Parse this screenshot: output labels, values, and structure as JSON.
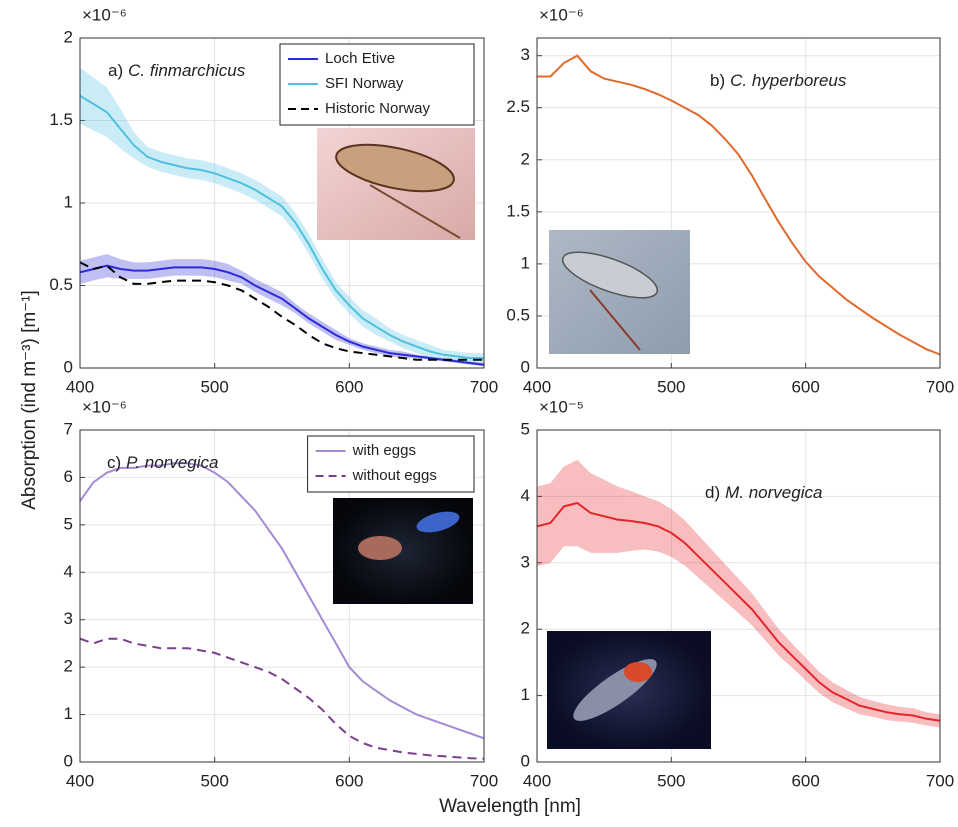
{
  "ylabel": "Absorption (ind m⁻³) [m⁻¹]",
  "xlabel": "Wavelength [nm]",
  "chart_data": [
    {
      "type": "line",
      "panel_label": "a)",
      "species": "C. finmarchicus",
      "y_multiplier": "×10⁻⁶",
      "x": [
        400,
        410,
        420,
        430,
        440,
        450,
        460,
        470,
        480,
        490,
        500,
        510,
        520,
        530,
        540,
        550,
        560,
        570,
        580,
        590,
        600,
        610,
        620,
        630,
        640,
        650,
        660,
        670,
        680,
        690,
        700
      ],
      "xlim": [
        400,
        700
      ],
      "xticks": [
        400,
        500,
        600,
        700
      ],
      "ylim": [
        0,
        2
      ],
      "yticks": [
        0,
        0.5,
        1,
        1.5,
        2
      ],
      "grid": true,
      "legend": "upper right",
      "series": [
        {
          "name": "Loch Etive",
          "color": "#2b2bd9",
          "dash": false,
          "values": [
            0.58,
            0.6,
            0.62,
            0.6,
            0.59,
            0.59,
            0.6,
            0.61,
            0.61,
            0.61,
            0.6,
            0.58,
            0.55,
            0.5,
            0.46,
            0.42,
            0.36,
            0.3,
            0.25,
            0.2,
            0.16,
            0.13,
            0.11,
            0.09,
            0.08,
            0.07,
            0.06,
            0.05,
            0.04,
            0.03,
            0.02
          ],
          "error": [
            0.07,
            0.07,
            0.07,
            0.06,
            0.05,
            0.05,
            0.05,
            0.05,
            0.05,
            0.05,
            0.05,
            0.05,
            0.04,
            0.04,
            0.04,
            0.04,
            0.03,
            0.03,
            0.03,
            0.03,
            0.02,
            0.02,
            0.02,
            0.02,
            0.02,
            0.01,
            0.01,
            0.01,
            0.01,
            0.01,
            0.01
          ]
        },
        {
          "name": "SFI Norway",
          "color": "#4fc0e0",
          "dash": false,
          "values": [
            1.65,
            1.6,
            1.55,
            1.45,
            1.35,
            1.28,
            1.25,
            1.23,
            1.21,
            1.2,
            1.18,
            1.15,
            1.12,
            1.08,
            1.03,
            0.98,
            0.88,
            0.75,
            0.6,
            0.47,
            0.38,
            0.3,
            0.25,
            0.2,
            0.16,
            0.13,
            0.1,
            0.08,
            0.07,
            0.06,
            0.06
          ],
          "error": [
            0.17,
            0.16,
            0.15,
            0.12,
            0.08,
            0.06,
            0.06,
            0.06,
            0.06,
            0.06,
            0.06,
            0.06,
            0.06,
            0.06,
            0.06,
            0.06,
            0.06,
            0.06,
            0.06,
            0.05,
            0.05,
            0.05,
            0.05,
            0.04,
            0.04,
            0.04,
            0.04,
            0.03,
            0.03,
            0.03,
            0.03
          ]
        },
        {
          "name": "Historic Norway",
          "color": "#000000",
          "dash": true,
          "values": [
            0.64,
            0.6,
            0.62,
            0.55,
            0.51,
            0.51,
            0.52,
            0.53,
            0.53,
            0.53,
            0.52,
            0.5,
            0.47,
            0.42,
            0.37,
            0.31,
            0.26,
            0.2,
            0.15,
            0.12,
            0.1,
            0.09,
            0.08,
            0.07,
            0.06,
            0.05,
            0.05,
            0.05,
            0.05,
            0.05,
            0.05
          ]
        }
      ]
    },
    {
      "type": "line",
      "panel_label": "b)",
      "species": "C. hyperboreus",
      "y_multiplier": "×10⁻⁶",
      "x": [
        400,
        410,
        420,
        430,
        440,
        450,
        460,
        470,
        480,
        490,
        500,
        510,
        520,
        530,
        540,
        550,
        560,
        570,
        580,
        590,
        600,
        610,
        620,
        630,
        640,
        650,
        660,
        670,
        680,
        690,
        700
      ],
      "xlim": [
        400,
        700
      ],
      "xticks": [
        400,
        500,
        600,
        700
      ],
      "ylim": [
        0,
        3.17
      ],
      "yticks": [
        0,
        0.5,
        1,
        1.5,
        2,
        2.5,
        3
      ],
      "grid": true,
      "series": [
        {
          "name": "C. hyperboreus",
          "color": "#e06a2c",
          "dash": false,
          "values": [
            2.8,
            2.8,
            2.93,
            3.0,
            2.85,
            2.78,
            2.75,
            2.72,
            2.68,
            2.63,
            2.57,
            2.5,
            2.43,
            2.33,
            2.2,
            2.05,
            1.85,
            1.62,
            1.4,
            1.2,
            1.02,
            0.88,
            0.77,
            0.66,
            0.57,
            0.48,
            0.4,
            0.32,
            0.25,
            0.18,
            0.13
          ]
        }
      ]
    },
    {
      "type": "line",
      "panel_label": "c)",
      "species": "P. norvegica",
      "y_multiplier": "×10⁻⁶",
      "x": [
        400,
        410,
        420,
        430,
        440,
        450,
        460,
        470,
        480,
        490,
        500,
        510,
        520,
        530,
        540,
        550,
        560,
        570,
        580,
        590,
        600,
        610,
        620,
        630,
        640,
        650,
        660,
        670,
        680,
        690,
        700
      ],
      "xlim": [
        400,
        700
      ],
      "xticks": [
        400,
        500,
        600,
        700
      ],
      "ylim": [
        0,
        7
      ],
      "yticks": [
        0,
        1,
        2,
        3,
        4,
        5,
        6,
        7
      ],
      "grid": true,
      "legend": "upper right",
      "series": [
        {
          "name": "with eggs",
          "color": "#a48ad4",
          "dash": false,
          "values": [
            5.5,
            5.9,
            6.1,
            6.2,
            6.2,
            6.25,
            6.25,
            6.3,
            6.3,
            6.25,
            6.1,
            5.9,
            5.6,
            5.3,
            4.9,
            4.5,
            4.0,
            3.5,
            3.0,
            2.5,
            2.0,
            1.7,
            1.5,
            1.3,
            1.15,
            1.0,
            0.9,
            0.8,
            0.7,
            0.6,
            0.5
          ]
        },
        {
          "name": "without eggs",
          "color": "#7a3f8c",
          "dash": true,
          "values": [
            2.6,
            2.5,
            2.6,
            2.6,
            2.5,
            2.45,
            2.4,
            2.4,
            2.4,
            2.35,
            2.3,
            2.2,
            2.1,
            2.0,
            1.9,
            1.75,
            1.55,
            1.35,
            1.1,
            0.8,
            0.55,
            0.4,
            0.3,
            0.25,
            0.2,
            0.17,
            0.14,
            0.12,
            0.1,
            0.08,
            0.07
          ]
        }
      ]
    },
    {
      "type": "line",
      "panel_label": "d)",
      "species": "M. norvegica",
      "y_multiplier": "×10⁻⁵",
      "x": [
        400,
        410,
        420,
        430,
        440,
        450,
        460,
        470,
        480,
        490,
        500,
        510,
        520,
        530,
        540,
        550,
        560,
        570,
        580,
        590,
        600,
        610,
        620,
        630,
        640,
        650,
        660,
        670,
        680,
        690,
        700
      ],
      "xlim": [
        400,
        700
      ],
      "xticks": [
        400,
        500,
        600,
        700
      ],
      "ylim": [
        0,
        5
      ],
      "yticks": [
        0,
        1,
        2,
        3,
        4,
        5
      ],
      "grid": true,
      "series": [
        {
          "name": "M. norvegica",
          "color": "#e4262c",
          "dash": false,
          "values": [
            3.55,
            3.6,
            3.85,
            3.9,
            3.75,
            3.7,
            3.65,
            3.63,
            3.6,
            3.55,
            3.45,
            3.3,
            3.1,
            2.9,
            2.7,
            2.5,
            2.3,
            2.05,
            1.8,
            1.6,
            1.4,
            1.2,
            1.05,
            0.95,
            0.85,
            0.8,
            0.75,
            0.72,
            0.7,
            0.65,
            0.62
          ],
          "error": [
            0.6,
            0.6,
            0.6,
            0.65,
            0.6,
            0.55,
            0.5,
            0.45,
            0.4,
            0.38,
            0.36,
            0.34,
            0.32,
            0.3,
            0.28,
            0.26,
            0.24,
            0.22,
            0.2,
            0.18,
            0.17,
            0.16,
            0.15,
            0.14,
            0.13,
            0.12,
            0.12,
            0.11,
            0.11,
            0.1,
            0.1
          ]
        }
      ]
    }
  ]
}
